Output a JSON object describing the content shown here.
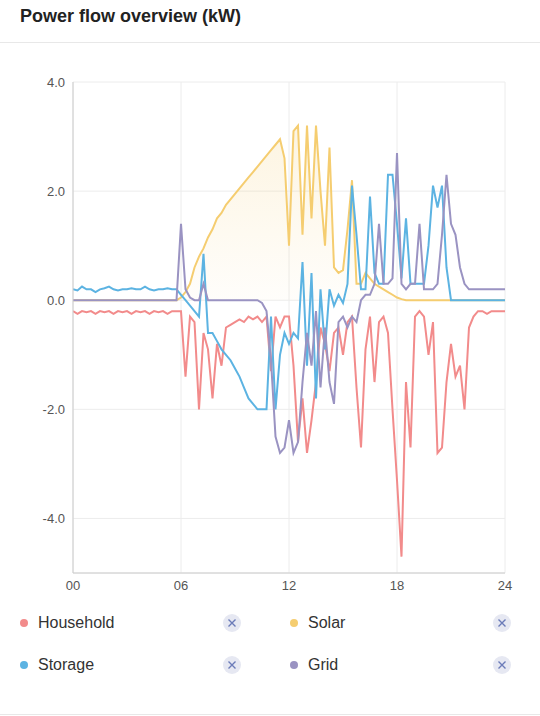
{
  "chart_data": {
    "type": "line",
    "title": "Power flow overview (kW)",
    "x": [
      0,
      0.25,
      0.5,
      0.75,
      1,
      1.25,
      1.5,
      1.75,
      2,
      2.25,
      2.5,
      2.75,
      3,
      3.25,
      3.5,
      3.75,
      4,
      4.25,
      4.5,
      4.75,
      5,
      5.25,
      5.5,
      5.75,
      6,
      6.25,
      6.5,
      6.75,
      7,
      7.25,
      7.5,
      7.75,
      8,
      8.25,
      8.5,
      8.75,
      9,
      9.25,
      9.5,
      9.75,
      10,
      10.25,
      10.5,
      10.75,
      11,
      11.25,
      11.5,
      11.75,
      12,
      12.25,
      12.5,
      12.75,
      13,
      13.25,
      13.5,
      13.75,
      14,
      14.25,
      14.5,
      14.75,
      15,
      15.25,
      15.5,
      15.75,
      16,
      16.25,
      16.5,
      16.75,
      17,
      17.25,
      17.5,
      17.75,
      18,
      18.25,
      18.5,
      18.75,
      19,
      19.25,
      19.5,
      19.75,
      20,
      20.25,
      20.5,
      20.75,
      21,
      21.25,
      21.5,
      21.75,
      22,
      22.25,
      22.5,
      22.75,
      23,
      23.25,
      23.5,
      23.75,
      24
    ],
    "series": [
      {
        "name": "Household",
        "color": "#f28b8b",
        "type": "line",
        "values": [
          -0.2,
          -0.25,
          -0.2,
          -0.22,
          -0.2,
          -0.25,
          -0.2,
          -0.22,
          -0.2,
          -0.25,
          -0.2,
          -0.22,
          -0.2,
          -0.25,
          -0.2,
          -0.22,
          -0.2,
          -0.25,
          -0.2,
          -0.22,
          -0.2,
          -0.25,
          -0.2,
          -0.2,
          -0.2,
          -1.4,
          -0.3,
          -0.4,
          -2.0,
          -0.6,
          -0.9,
          -1.8,
          -0.8,
          -1.2,
          -0.5,
          -0.45,
          -0.4,
          -0.35,
          -0.4,
          -0.3,
          -0.35,
          -0.3,
          -0.4,
          -0.3,
          -1.3,
          -0.3,
          -0.5,
          -0.3,
          -0.3,
          -1.2,
          -2.6,
          -1.8,
          -2.8,
          -2.2,
          -1.5,
          -0.5,
          -0.8,
          -1.3,
          -0.6,
          -0.5,
          -1.0,
          -0.4,
          -0.3,
          -1.6,
          -2.7,
          -0.9,
          -0.3,
          -1.5,
          -0.4,
          -0.3,
          -0.6,
          -2.0,
          -3.3,
          -4.7,
          -1.5,
          -2.7,
          -0.3,
          -0.2,
          -0.3,
          -1.0,
          -0.4,
          -2.8,
          -2.7,
          -1.5,
          -0.8,
          -1.4,
          -1.2,
          -2.0,
          -0.5,
          -0.3,
          -0.2,
          -0.2,
          -0.25,
          -0.2,
          -0.2,
          -0.2,
          -0.2
        ]
      },
      {
        "name": "Solar",
        "color": "#f5cd70",
        "type": "area",
        "values": [
          0,
          0,
          0,
          0,
          0,
          0,
          0,
          0,
          0,
          0,
          0,
          0,
          0,
          0,
          0,
          0,
          0,
          0,
          0,
          0,
          0,
          0,
          0,
          0,
          0.05,
          0.15,
          0.3,
          0.6,
          0.8,
          0.95,
          1.15,
          1.3,
          1.5,
          1.6,
          1.75,
          1.85,
          1.95,
          2.05,
          2.15,
          2.25,
          2.35,
          2.45,
          2.55,
          2.65,
          2.75,
          2.85,
          2.95,
          2.6,
          1.0,
          3.1,
          3.2,
          1.2,
          3.2,
          1.5,
          3.2,
          2.0,
          1.0,
          2.8,
          0.6,
          0.5,
          0.55,
          1.3,
          2.2,
          0.3,
          0.3,
          0.5,
          0.4,
          0.3,
          0.25,
          0.2,
          0.15,
          0.1,
          0.05,
          0.02,
          0,
          0,
          0,
          0,
          0,
          0,
          0,
          0,
          0,
          0,
          0,
          0,
          0,
          0,
          0,
          0,
          0,
          0,
          0,
          0,
          0,
          0,
          0
        ]
      },
      {
        "name": "Storage",
        "color": "#5cb3e2",
        "type": "line",
        "values": [
          0.2,
          0.18,
          0.25,
          0.2,
          0.2,
          0.15,
          0.2,
          0.22,
          0.25,
          0.2,
          0.18,
          0.2,
          0.2,
          0.22,
          0.2,
          0.2,
          0.25,
          0.2,
          0.18,
          0.2,
          0.2,
          0.22,
          0.2,
          0.2,
          0.1,
          0.0,
          -0.1,
          -0.2,
          -0.3,
          0.85,
          -0.6,
          -0.6,
          -0.75,
          -0.9,
          -1.0,
          -1.1,
          -1.25,
          -1.4,
          -1.6,
          -1.8,
          -1.9,
          -2.0,
          -2.0,
          -2.0,
          -0.3,
          -2.0,
          -1.0,
          -0.6,
          -0.8,
          -0.6,
          -0.7,
          0.7,
          -1.2,
          0.5,
          -1.8,
          0.2,
          -0.9,
          0.2,
          -0.1,
          0.1,
          -0.05,
          0.3,
          2.1,
          1.2,
          0.2,
          0.2,
          1.9,
          0.5,
          0.3,
          0.3,
          2.3,
          2.3,
          1.4,
          0.4,
          1.5,
          0.3,
          0.3,
          0.3,
          0.3,
          1.0,
          2.1,
          1.7,
          2.1,
          0.6,
          0.0,
          0,
          0,
          0,
          0,
          0,
          0,
          0,
          0,
          0,
          0,
          0,
          0
        ]
      },
      {
        "name": "Grid",
        "color": "#9a93c2",
        "type": "line",
        "values": [
          0,
          0,
          0,
          0,
          0,
          0,
          0,
          0,
          0,
          0,
          0,
          0,
          0,
          0,
          0,
          0,
          0,
          0,
          0,
          0,
          0,
          0,
          0,
          0,
          1.4,
          0.2,
          0.05,
          0.0,
          0.0,
          0.3,
          0,
          0,
          0,
          0,
          0,
          0,
          0,
          0,
          0,
          0,
          0,
          0,
          -0.05,
          -0.2,
          -1.1,
          -2.5,
          -2.8,
          -2.7,
          -2.2,
          -2.8,
          -2.6,
          -1.5,
          -0.6,
          -1.2,
          -0.2,
          -1.6,
          -0.5,
          -1.5,
          -1.9,
          -0.4,
          -0.3,
          -0.5,
          -0.3,
          -0.4,
          0.0,
          0.1,
          0.1,
          0.3,
          1.4,
          0.3,
          0.3,
          0.4,
          2.7,
          0.3,
          0.2,
          0.3,
          0.3,
          1.4,
          0.2,
          0.2,
          0.2,
          0.3,
          1.2,
          2.3,
          1.4,
          1.2,
          0.6,
          0.3,
          0.2,
          0.2,
          0.2,
          0.2,
          0.2,
          0.2,
          0.2,
          0.2,
          0.2
        ]
      }
    ],
    "xlim": [
      0,
      24
    ],
    "xticks": [
      {
        "value": 0,
        "label": "00"
      },
      {
        "value": 6,
        "label": "06"
      },
      12,
      18,
      24
    ],
    "ylim": [
      -5,
      4
    ],
    "yticks": [
      {
        "value": 4,
        "label": "4.0"
      },
      {
        "value": 2,
        "label": "2.0"
      },
      {
        "value": 0,
        "label": "0.0"
      },
      {
        "value": -2,
        "label": "-2.0"
      },
      {
        "value": -4,
        "label": "-4.0"
      }
    ],
    "grid": true,
    "legend": "bottom"
  }
}
